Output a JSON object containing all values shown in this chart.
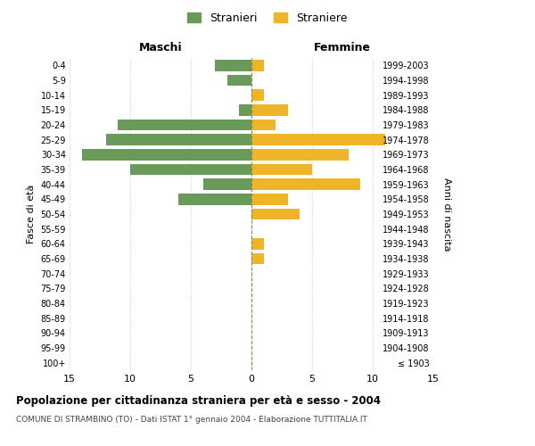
{
  "age_groups": [
    "100+",
    "95-99",
    "90-94",
    "85-89",
    "80-84",
    "75-79",
    "70-74",
    "65-69",
    "60-64",
    "55-59",
    "50-54",
    "45-49",
    "40-44",
    "35-39",
    "30-34",
    "25-29",
    "20-24",
    "15-19",
    "10-14",
    "5-9",
    "0-4"
  ],
  "birth_years": [
    "≤ 1903",
    "1904-1908",
    "1909-1913",
    "1914-1918",
    "1919-1923",
    "1924-1928",
    "1929-1933",
    "1934-1938",
    "1939-1943",
    "1944-1948",
    "1949-1953",
    "1954-1958",
    "1959-1963",
    "1964-1968",
    "1969-1973",
    "1974-1978",
    "1979-1983",
    "1984-1988",
    "1989-1993",
    "1994-1998",
    "1999-2003"
  ],
  "maschi": [
    0,
    0,
    0,
    0,
    0,
    0,
    0,
    0,
    0,
    0,
    0,
    6,
    4,
    10,
    14,
    12,
    11,
    1,
    0,
    2,
    3
  ],
  "femmine": [
    0,
    0,
    0,
    0,
    0,
    0,
    0,
    1,
    1,
    0,
    4,
    3,
    9,
    5,
    8,
    11,
    2,
    3,
    1,
    0,
    1
  ],
  "maschi_color": "#6a9a5a",
  "femmine_color": "#f0b429",
  "title": "Popolazione per cittadinanza straniera per età e sesso - 2004",
  "subtitle": "COMUNE DI STRAMBINO (TO) - Dati ISTAT 1° gennaio 2004 - Elaborazione TUTTITALIA.IT",
  "xlabel_left": "Maschi",
  "xlabel_right": "Femmine",
  "ylabel_left": "Fasce di età",
  "ylabel_right": "Anni di nascita",
  "legend_maschi": "Stranieri",
  "legend_femmine": "Straniere",
  "xlim": 15,
  "background_color": "#ffffff",
  "grid_color": "#cccccc"
}
